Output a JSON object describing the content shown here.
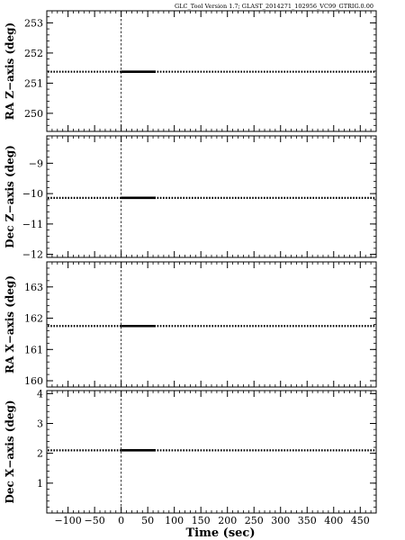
{
  "chart_data": {
    "type": "line",
    "header": "GLC_Tool Version 1.7; GLAST_2014271_102956_VC99_GTRIG.0.00",
    "xlabel": "Time (sec)",
    "xlim": [
      -140,
      480
    ],
    "xticks": [
      -100,
      -50,
      0,
      50,
      100,
      150,
      200,
      250,
      300,
      350,
      400,
      450
    ],
    "xtick_labels": [
      "−100",
      "−50",
      "0",
      "50",
      "100",
      "150",
      "200",
      "250",
      "300",
      "350",
      "400",
      "450"
    ],
    "trigger_time": 0,
    "panels": [
      {
        "ylabel": "RA Z−axis (deg)",
        "ylim": [
          249.4,
          253.4
        ],
        "yticks": [
          250,
          251,
          252,
          253
        ],
        "ytick_labels": [
          "250",
          "251",
          "252",
          "253"
        ],
        "dotted_value": 251.38,
        "solid_segment": {
          "x": [
            0,
            65
          ],
          "y": 251.38
        }
      },
      {
        "ylabel": "Dec Z−axis (deg)",
        "ylim": [
          -12.1,
          -8.1
        ],
        "yticks": [
          -12,
          -11,
          -10,
          -9
        ],
        "ytick_labels": [
          "−12",
          "−11",
          "−10",
          "−9"
        ],
        "dotted_value": -10.14,
        "solid_segment": {
          "x": [
            0,
            65
          ],
          "y": -10.14
        }
      },
      {
        "ylabel": "RA X−axis (deg)",
        "ylim": [
          159.8,
          163.8
        ],
        "yticks": [
          160,
          161,
          162,
          163
        ],
        "ytick_labels": [
          "160",
          "161",
          "162",
          "163"
        ],
        "dotted_value": 161.75,
        "solid_segment": {
          "x": [
            0,
            65
          ],
          "y": 161.75
        }
      },
      {
        "ylabel": "Dec X−axis (deg)",
        "ylim": [
          0,
          4.1
        ],
        "yticks": [
          1,
          2,
          3,
          4
        ],
        "ytick_labels": [
          "1",
          "2",
          "3",
          "4"
        ],
        "dotted_value": 2.1,
        "solid_segment": {
          "x": [
            0,
            65
          ],
          "y": 2.1
        }
      }
    ]
  }
}
